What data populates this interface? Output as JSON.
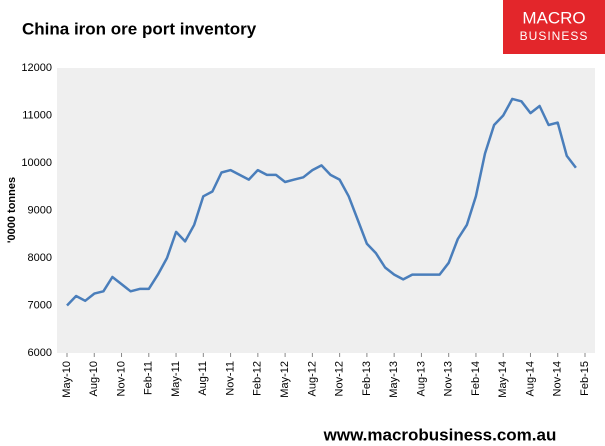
{
  "chart_data": {
    "type": "line",
    "title": "China iron ore port inventory",
    "y_label": "'0000 tonnes",
    "logo": {
      "line1": "MACRO",
      "line2": "BUSINESS"
    },
    "source": "www.macrobusiness.com.au",
    "x": [
      "May-10",
      null,
      null,
      "Aug-10",
      null,
      null,
      "Nov-10",
      null,
      null,
      "Feb-11",
      null,
      null,
      "May-11",
      null,
      null,
      "Aug-11",
      null,
      null,
      "Nov-11",
      null,
      null,
      "Feb-12",
      null,
      null,
      "May-12",
      null,
      null,
      "Aug-12",
      null,
      null,
      "Nov-12",
      null,
      null,
      "Feb-13",
      null,
      null,
      "May-13",
      null,
      null,
      "Aug-13",
      null,
      null,
      "Nov-13",
      null,
      null,
      "Feb-14",
      null,
      null,
      "May-14",
      null,
      null,
      "Aug-14",
      null,
      null,
      "Nov-14",
      null,
      null,
      "Feb-15"
    ],
    "series": [
      {
        "color": "#4a7ebb",
        "values": [
          7000,
          7200,
          7100,
          7250,
          7300,
          7600,
          7450,
          7300,
          7350,
          7350,
          7650,
          8000,
          8550,
          8350,
          8700,
          9300,
          9400,
          9800,
          9850,
          9750,
          9650,
          9850,
          9750,
          9750,
          9600,
          9650,
          9700,
          9850,
          9950,
          9750,
          9650,
          9300,
          8800,
          8300,
          8100,
          7800,
          7650,
          7550,
          7650,
          7650,
          7650,
          7650,
          7900,
          8400,
          8700,
          9300,
          10200,
          10800,
          11000,
          11350,
          11300,
          11050,
          11200,
          10800,
          10850,
          10150,
          9900,
          null
        ]
      }
    ],
    "ylim": [
      6000,
      12000
    ],
    "yticks": [
      6000,
      7000,
      8000,
      9000,
      10000,
      11000,
      12000
    ],
    "grid": false
  }
}
